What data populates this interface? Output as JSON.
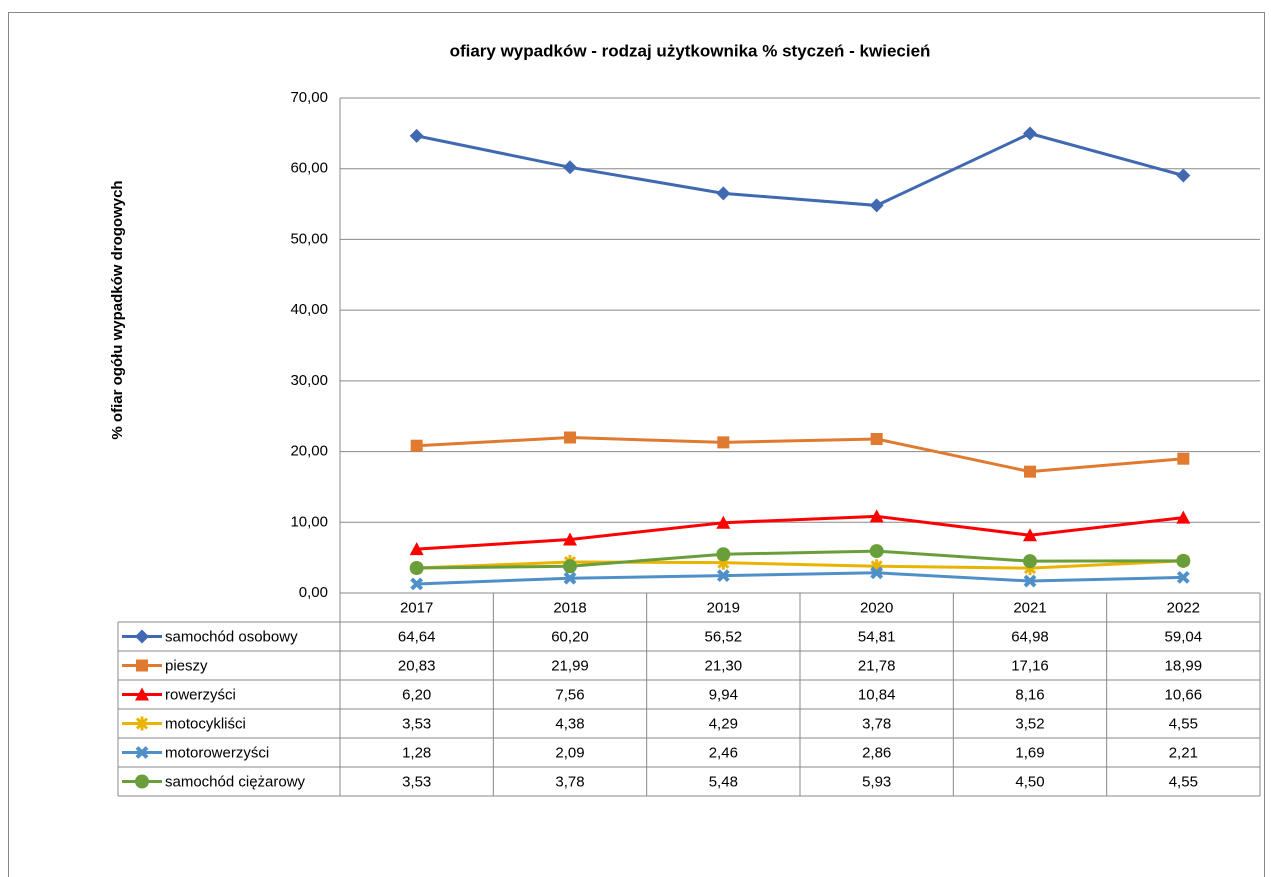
{
  "chart_data": {
    "type": "line",
    "title": "ofiary wypadków - rodzaj użytkownika % styczeń - kwiecień",
    "y_label": "% ofiar ogółu wypadków drogowych",
    "categories": [
      "2017",
      "2018",
      "2019",
      "2020",
      "2021",
      "2022"
    ],
    "ylim": [
      0,
      70
    ],
    "yticks": [
      {
        "value": 0,
        "label": "0,00"
      },
      {
        "value": 10,
        "label": "10,00"
      },
      {
        "value": 20,
        "label": "20,00"
      },
      {
        "value": 30,
        "label": "30,00"
      },
      {
        "value": 40,
        "label": "40,00"
      },
      {
        "value": 50,
        "label": "50,00"
      },
      {
        "value": 60,
        "label": "60,00"
      },
      {
        "value": 70,
        "label": "70,00"
      }
    ],
    "grid": true,
    "series": [
      {
        "name": "samochód osobowy",
        "color": "#4169b1",
        "marker": "diamond",
        "values": [
          64.64,
          60.2,
          56.52,
          54.81,
          64.98,
          59.04
        ],
        "value_labels": [
          "64,64",
          "60,20",
          "56,52",
          "54,81",
          "64,98",
          "59,04"
        ]
      },
      {
        "name": "pieszy",
        "color": "#e07a30",
        "marker": "square",
        "values": [
          20.83,
          21.99,
          21.3,
          21.78,
          17.16,
          18.99
        ],
        "value_labels": [
          "20,83",
          "21,99",
          "21,30",
          "21,78",
          "17,16",
          "18,99"
        ]
      },
      {
        "name": "rowerzyści",
        "color": "#ff0000",
        "marker": "triangle",
        "values": [
          6.2,
          7.56,
          9.94,
          10.84,
          8.16,
          10.66
        ],
        "value_labels": [
          "6,20",
          "7,56",
          "9,94",
          "10,84",
          "8,16",
          "10,66"
        ]
      },
      {
        "name": "motocykliści",
        "color": "#e8b400",
        "marker": "star",
        "values": [
          3.53,
          4.38,
          4.29,
          3.78,
          3.52,
          4.55
        ],
        "value_labels": [
          "3,53",
          "4,38",
          "4,29",
          "3,78",
          "3,52",
          "4,55"
        ]
      },
      {
        "name": "motorowerzyści",
        "color": "#5090c8",
        "marker": "x",
        "values": [
          1.28,
          2.09,
          2.46,
          2.86,
          1.69,
          2.21
        ],
        "value_labels": [
          "1,28",
          "2,09",
          "2,46",
          "2,86",
          "1,69",
          "2,21"
        ]
      },
      {
        "name": "samochód ciężarowy",
        "color": "#6a9e3a",
        "marker": "circle",
        "values": [
          3.53,
          3.78,
          5.48,
          5.93,
          4.5,
          4.55
        ],
        "value_labels": [
          "3,53",
          "3,78",
          "5,48",
          "5,93",
          "4,50",
          "4,55"
        ]
      }
    ]
  }
}
